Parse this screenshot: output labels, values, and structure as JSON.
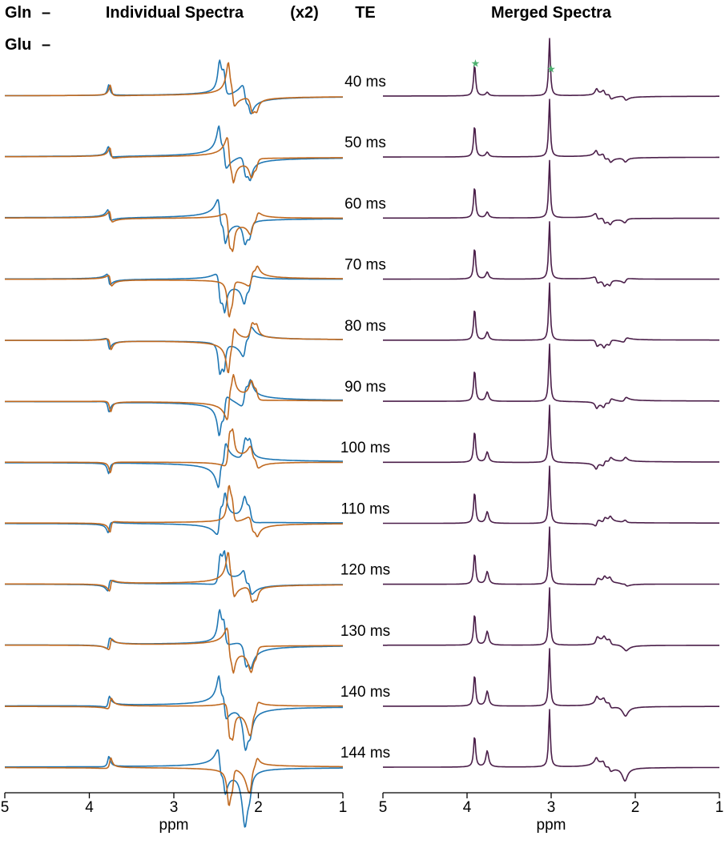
{
  "legend": {
    "gln_label": "Gln",
    "glu_label": "Glu",
    "gln_marker": "–",
    "glu_marker": "–",
    "gln_color": "#1f77b4",
    "glu_color": "#c0691f"
  },
  "headers": {
    "individual": "Individual Spectra",
    "scale": "(x2)",
    "te": "TE",
    "merged": "Merged Spectra"
  },
  "merged_color": "#4b1f4a",
  "star_color": "#4caf6e",
  "chart_data": [
    {
      "type": "line",
      "title": "Individual Spectra",
      "xlabel": "ppm",
      "xlim": [
        5,
        1
      ],
      "x_reversed": true,
      "x_ticks": [
        "5",
        "4",
        "3",
        "2",
        "1"
      ],
      "series": [
        {
          "name": "Gln",
          "color": "#1f77b4"
        },
        {
          "name": "Glu",
          "color": "#c0691f"
        }
      ],
      "stacked_by": "TE",
      "te_values": [
        "40 ms",
        "50 ms",
        "60 ms",
        "70 ms",
        "80 ms",
        "90 ms",
        "100 ms",
        "110 ms",
        "120 ms",
        "130 ms",
        "140 ms",
        "144 ms"
      ]
    },
    {
      "type": "line",
      "title": "Merged Spectra",
      "xlabel": "ppm",
      "xlim": [
        5,
        1
      ],
      "x_reversed": true,
      "x_ticks": [
        "5",
        "4",
        "3",
        "2",
        "1"
      ],
      "peak_markers_ppm": [
        3.9,
        3.0
      ],
      "stacked_by": "TE",
      "te_values": [
        "40 ms",
        "50 ms",
        "60 ms",
        "70 ms",
        "80 ms",
        "90 ms",
        "100 ms",
        "110 ms",
        "120 ms",
        "130 ms",
        "140 ms",
        "144 ms"
      ]
    }
  ]
}
